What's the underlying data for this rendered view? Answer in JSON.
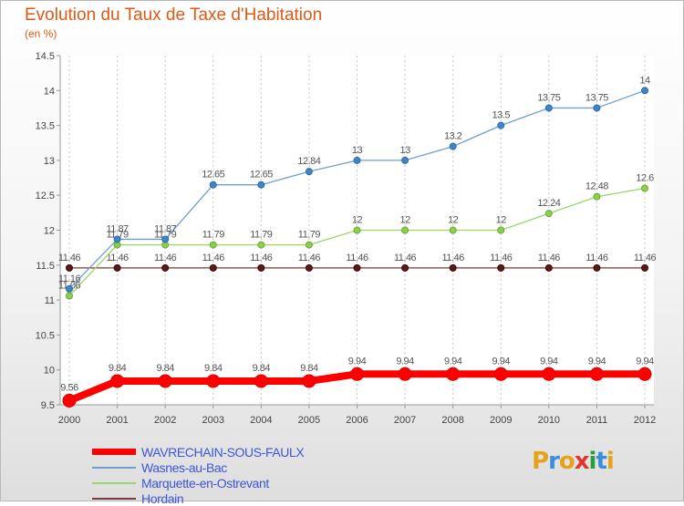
{
  "logo_text": "Proxiti",
  "chart_data": {
    "type": "line",
    "title": "Evolution du Taux de Taxe d'Habitation",
    "subtitle": "(en %)",
    "xlabel": "",
    "ylabel": "",
    "ylim": [
      9.5,
      14.5
    ],
    "yticks": [
      9.5,
      10,
      10.5,
      11,
      11.5,
      12,
      12.5,
      13,
      13.5,
      14,
      14.5
    ],
    "ytick_labels": [
      "9.5",
      "10",
      "10.5",
      "11",
      "11.5",
      "12",
      "12.5",
      "13",
      "13.5",
      "14",
      "14.5"
    ],
    "x": [
      "2000",
      "2001",
      "2002",
      "2003",
      "2004",
      "2005",
      "2006",
      "2007",
      "2008",
      "2009",
      "2010",
      "2011",
      "2012"
    ],
    "grid": "vertical",
    "legend_position": "bottom-left",
    "series": [
      {
        "name": "WAVRECHAIN-SOUS-FAULX",
        "color": "#ff0000",
        "values": [
          9.56,
          9.84,
          9.84,
          9.84,
          9.84,
          9.84,
          9.94,
          9.94,
          9.94,
          9.94,
          9.94,
          9.94,
          9.94
        ],
        "labels": [
          "9.56",
          "9.84",
          "9.84",
          "9.84",
          "9.84",
          "9.84",
          "9.94",
          "9.94",
          "9.94",
          "9.94",
          "9.94",
          "9.94",
          "9.94"
        ]
      },
      {
        "name": "Wasnes-au-Bac",
        "color": "#6f9fd0",
        "values": [
          11.16,
          11.87,
          11.87,
          12.65,
          12.65,
          12.84,
          13,
          13,
          13.2,
          13.5,
          13.75,
          13.75,
          14
        ],
        "labels": [
          "11.16",
          "11.87",
          "11.87",
          "12.65",
          "12.65",
          "12.84",
          "13",
          "13",
          "13.2",
          "13.5",
          "13.75",
          "13.75",
          "14"
        ]
      },
      {
        "name": "Marquette-en-Ostrevant",
        "color": "#9ed56a",
        "values": [
          11.06,
          11.79,
          11.79,
          11.79,
          11.79,
          11.79,
          12,
          12,
          12,
          12,
          12.24,
          12.48,
          12.6
        ],
        "labels": [
          "11.06",
          "11.79",
          "11.79",
          "11.79",
          "11.79",
          "11.79",
          "12",
          "12",
          "12",
          "12",
          "12.24",
          "12.48",
          "12.6"
        ]
      },
      {
        "name": "Hordain",
        "color": "#7a3a3a",
        "values": [
          11.46,
          11.46,
          11.46,
          11.46,
          11.46,
          11.46,
          11.46,
          11.46,
          11.46,
          11.46,
          11.46,
          11.46,
          11.46
        ],
        "labels": [
          "11.46",
          "11.46",
          "11.46",
          "11.46",
          "11.46",
          "11.46",
          "11.46",
          "11.46",
          "11.46",
          "11.46",
          "11.46",
          "11.46",
          "11.46"
        ]
      }
    ]
  }
}
